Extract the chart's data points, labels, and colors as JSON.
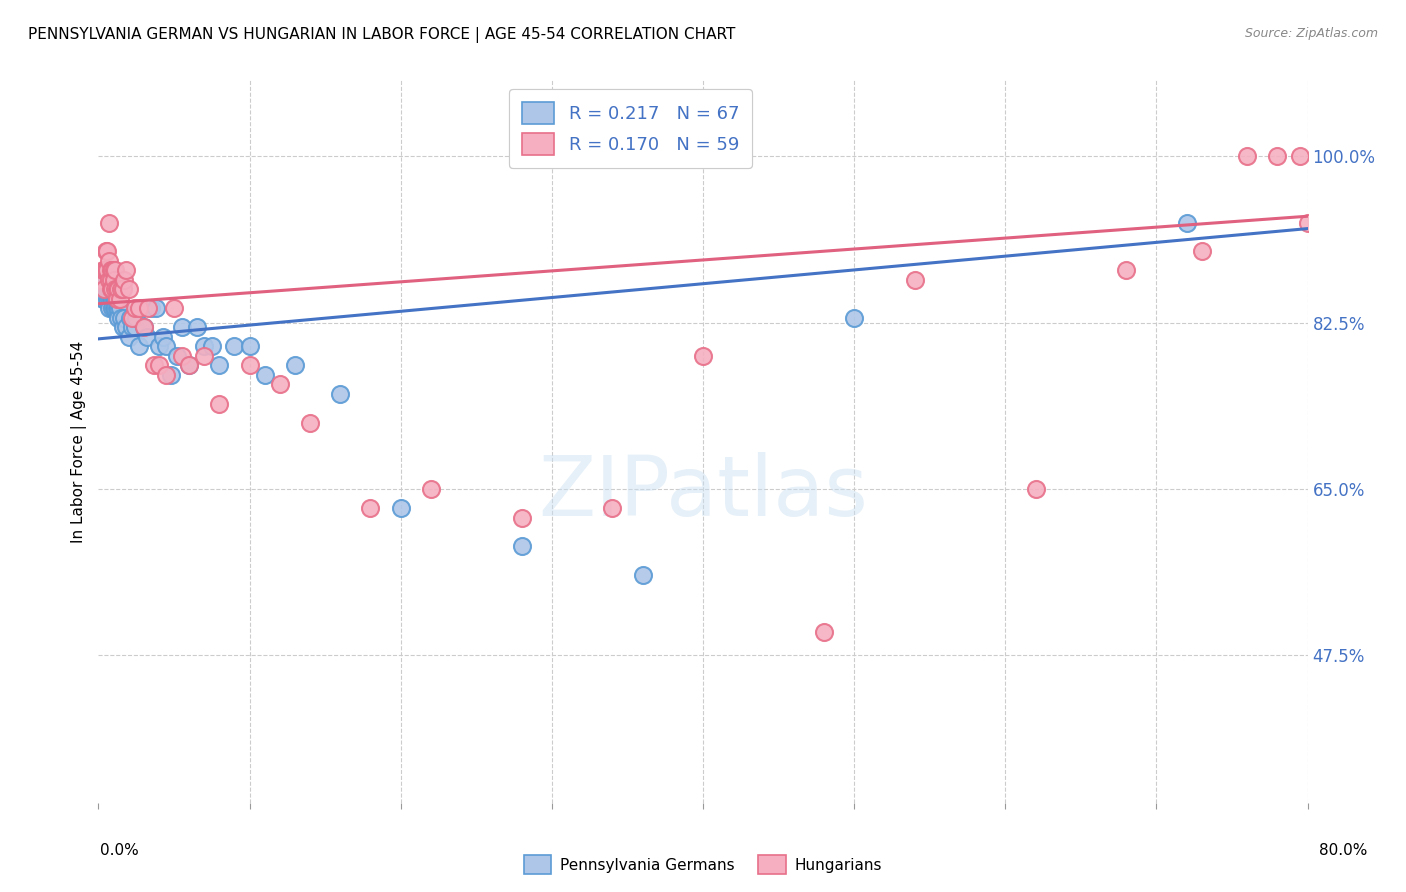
{
  "title": "PENNSYLVANIA GERMAN VS HUNGARIAN IN LABOR FORCE | AGE 45-54 CORRELATION CHART",
  "source": "Source: ZipAtlas.com",
  "ylabel": "In Labor Force | Age 45-54",
  "ytick_labels": [
    "47.5%",
    "65.0%",
    "82.5%",
    "100.0%"
  ],
  "ytick_values": [
    0.475,
    0.65,
    0.825,
    1.0
  ],
  "xlim": [
    0.0,
    0.8
  ],
  "ylim": [
    0.32,
    1.08
  ],
  "legend_blue_label": "R = 0.217   N = 67",
  "legend_pink_label": "R = 0.170   N = 59",
  "legend_bottom_blue": "Pennsylvania Germans",
  "legend_bottom_pink": "Hungarians",
  "blue_color": "#aec6e8",
  "pink_color": "#f5afc0",
  "blue_edge_color": "#5b9bd5",
  "pink_edge_color": "#e8708a",
  "blue_line_color": "#4472c4",
  "pink_line_color": "#e06080",
  "blue_intercept": 0.808,
  "blue_slope": 0.145,
  "pink_intercept": 0.845,
  "pink_slope": 0.115,
  "blue_x": [
    0.002,
    0.003,
    0.003,
    0.004,
    0.004,
    0.005,
    0.005,
    0.005,
    0.006,
    0.006,
    0.006,
    0.007,
    0.007,
    0.007,
    0.007,
    0.008,
    0.008,
    0.008,
    0.009,
    0.009,
    0.009,
    0.01,
    0.01,
    0.01,
    0.011,
    0.011,
    0.012,
    0.012,
    0.013,
    0.013,
    0.014,
    0.015,
    0.016,
    0.017,
    0.018,
    0.02,
    0.021,
    0.022,
    0.024,
    0.025,
    0.027,
    0.028,
    0.03,
    0.032,
    0.035,
    0.038,
    0.04,
    0.043,
    0.045,
    0.048,
    0.052,
    0.055,
    0.06,
    0.065,
    0.07,
    0.075,
    0.08,
    0.09,
    0.1,
    0.11,
    0.13,
    0.16,
    0.2,
    0.28,
    0.36,
    0.5,
    0.72
  ],
  "blue_y": [
    0.86,
    0.87,
    0.85,
    0.86,
    0.85,
    0.88,
    0.87,
    0.86,
    0.87,
    0.86,
    0.85,
    0.87,
    0.86,
    0.85,
    0.84,
    0.87,
    0.86,
    0.85,
    0.86,
    0.85,
    0.84,
    0.86,
    0.85,
    0.84,
    0.85,
    0.84,
    0.85,
    0.84,
    0.84,
    0.83,
    0.84,
    0.83,
    0.82,
    0.83,
    0.82,
    0.81,
    0.83,
    0.82,
    0.82,
    0.83,
    0.8,
    0.84,
    0.82,
    0.81,
    0.84,
    0.84,
    0.8,
    0.81,
    0.8,
    0.77,
    0.79,
    0.82,
    0.78,
    0.82,
    0.8,
    0.8,
    0.78,
    0.8,
    0.8,
    0.77,
    0.78,
    0.75,
    0.63,
    0.59,
    0.56,
    0.83,
    0.93
  ],
  "pink_x": [
    0.002,
    0.003,
    0.004,
    0.004,
    0.005,
    0.005,
    0.006,
    0.006,
    0.007,
    0.007,
    0.007,
    0.008,
    0.008,
    0.008,
    0.009,
    0.009,
    0.01,
    0.01,
    0.011,
    0.011,
    0.012,
    0.012,
    0.013,
    0.014,
    0.015,
    0.016,
    0.017,
    0.018,
    0.02,
    0.022,
    0.024,
    0.027,
    0.03,
    0.033,
    0.037,
    0.04,
    0.045,
    0.05,
    0.055,
    0.06,
    0.07,
    0.08,
    0.1,
    0.12,
    0.14,
    0.18,
    0.22,
    0.28,
    0.34,
    0.4,
    0.48,
    0.54,
    0.62,
    0.68,
    0.73,
    0.76,
    0.78,
    0.795,
    0.8
  ],
  "pink_y": [
    0.87,
    0.88,
    0.86,
    0.88,
    0.9,
    0.88,
    0.9,
    0.88,
    0.93,
    0.89,
    0.87,
    0.88,
    0.87,
    0.86,
    0.88,
    0.86,
    0.88,
    0.87,
    0.88,
    0.86,
    0.86,
    0.85,
    0.86,
    0.85,
    0.86,
    0.86,
    0.87,
    0.88,
    0.86,
    0.83,
    0.84,
    0.84,
    0.82,
    0.84,
    0.78,
    0.78,
    0.77,
    0.84,
    0.79,
    0.78,
    0.79,
    0.74,
    0.78,
    0.76,
    0.72,
    0.63,
    0.65,
    0.62,
    0.63,
    0.79,
    0.5,
    0.87,
    0.65,
    0.88,
    0.9,
    1.0,
    1.0,
    1.0,
    0.93
  ]
}
